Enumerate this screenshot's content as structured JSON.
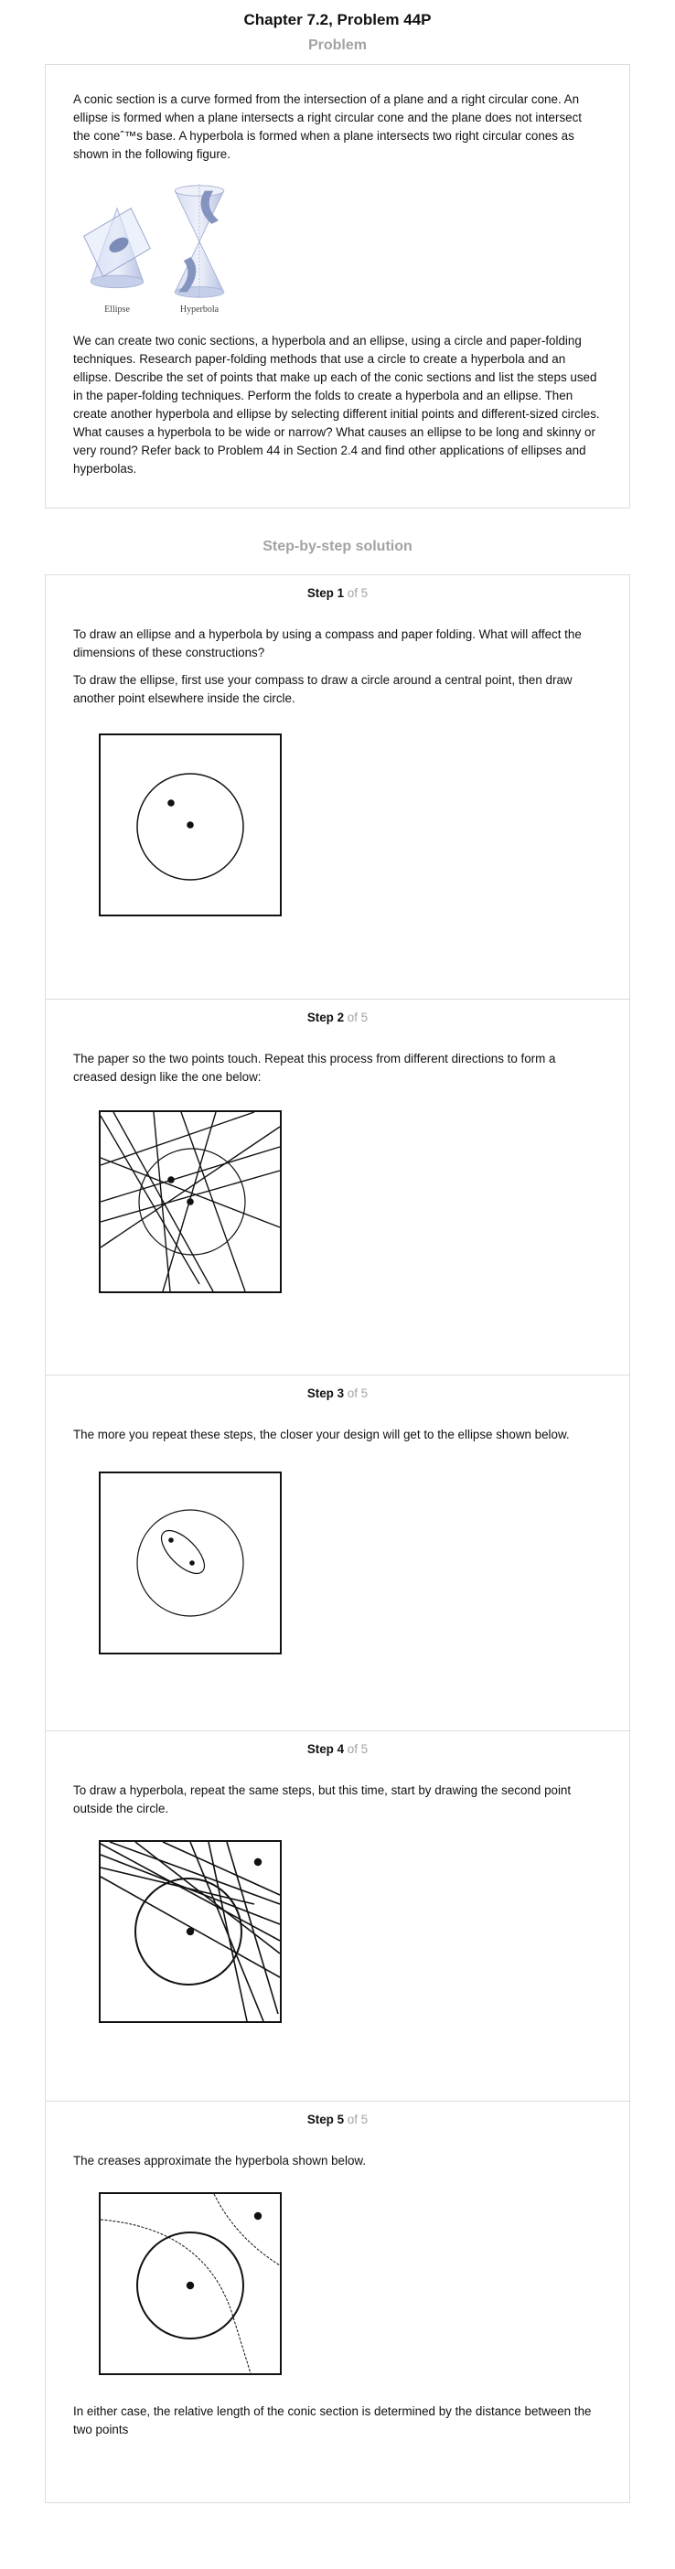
{
  "title": "Chapter 7.2, Problem 44P",
  "problem": {
    "heading": "Problem",
    "paragraph1": "A conic section is a curve formed from the intersection of a plane and a right circular cone. An ellipse is formed when a plane intersects a right circular cone and the plane does not intersect the coneˆ™s base. A hyperbola is formed when a plane intersects two right circular cones as shown in the following figure.",
    "figure_labels": {
      "ellipse": "Ellipse",
      "hyperbola": "Hyperbola"
    },
    "paragraph2": "We can create two conic sections, a hyperbola and an ellipse, using a circle and paper-folding techniques. Research paper-folding methods that use a circle to create a hyperbola and an ellipse. Describe the set of points that make up each of the conic sections and list the steps used in the paper-folding techniques. Perform the folds to create a hyperbola and an ellipse. Then create another hyperbola and ellipse by selecting different initial points and different-sized circles. What causes a hyperbola to be wide or narrow? What causes an ellipse to be long and skinny or very round? Refer back to Problem 44 in Section 2.4 and find other applications of ellipses and hyperbolas."
  },
  "solution": {
    "heading": "Step-by-step solution",
    "step_word": "Step",
    "of_text": "of 5",
    "steps": [
      {
        "number": "1",
        "text1": "To draw an ellipse and a hyperbola by using a compass and paper folding. What will affect the dimensions of these constructions?",
        "text2": "To draw the ellipse, first use your compass to draw a circle around a central point, then draw another point elsewhere inside the circle."
      },
      {
        "number": "2",
        "text1": "The paper so the two points touch. Repeat this process from different directions to form a creased design like the one below:"
      },
      {
        "number": "3",
        "text1": "The more you repeat these steps, the closer your design will get to the ellipse shown below."
      },
      {
        "number": "4",
        "text1": "To draw a hyperbola, repeat the same steps, but this time, start by drawing the second point outside the circle."
      },
      {
        "number": "5",
        "text1": "The creases approximate the hyperbola shown below.",
        "text2": "In either case, the relative length of the conic section is determined by the distance between the two points"
      }
    ]
  }
}
